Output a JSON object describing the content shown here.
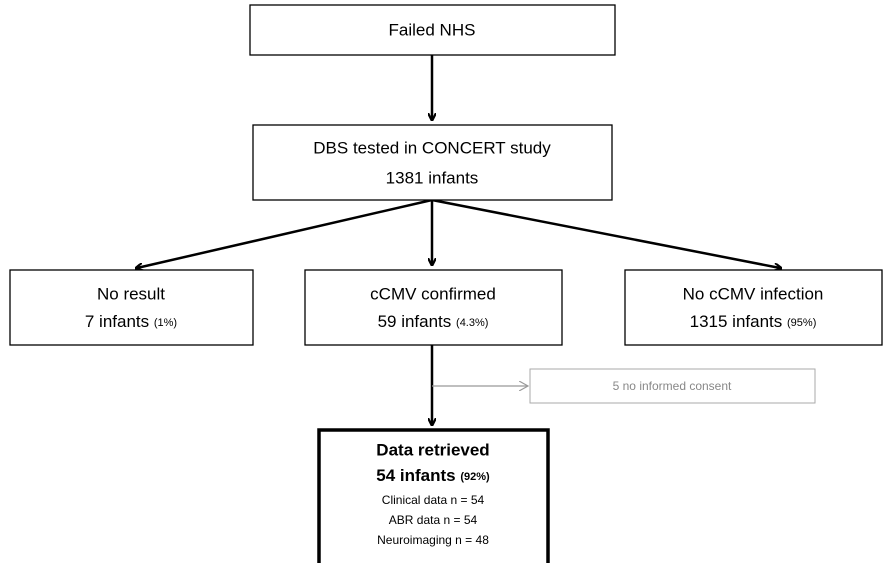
{
  "nodes": [
    {
      "label": "Failed NHS"
    },
    {
      "label": "DBS tested in CONCERT study",
      "count": "1381 infants"
    },
    {
      "label": "No result",
      "count": "7 infants",
      "percent": "(1%)"
    },
    {
      "label": "cCMV confirmed",
      "count": "59 infants",
      "percent": "(4.3%)"
    },
    {
      "label": "No cCMV infection",
      "count": "1315 infants",
      "percent": "(95%)"
    }
  ],
  "side_note": "5 no informed consent",
  "final": {
    "title": "Data retrieved",
    "count": "54 infants",
    "percent": "(92%)",
    "details": [
      "Clinical data n = 54",
      "ABR data n = 54",
      "Neuroimaging n = 48"
    ]
  }
}
